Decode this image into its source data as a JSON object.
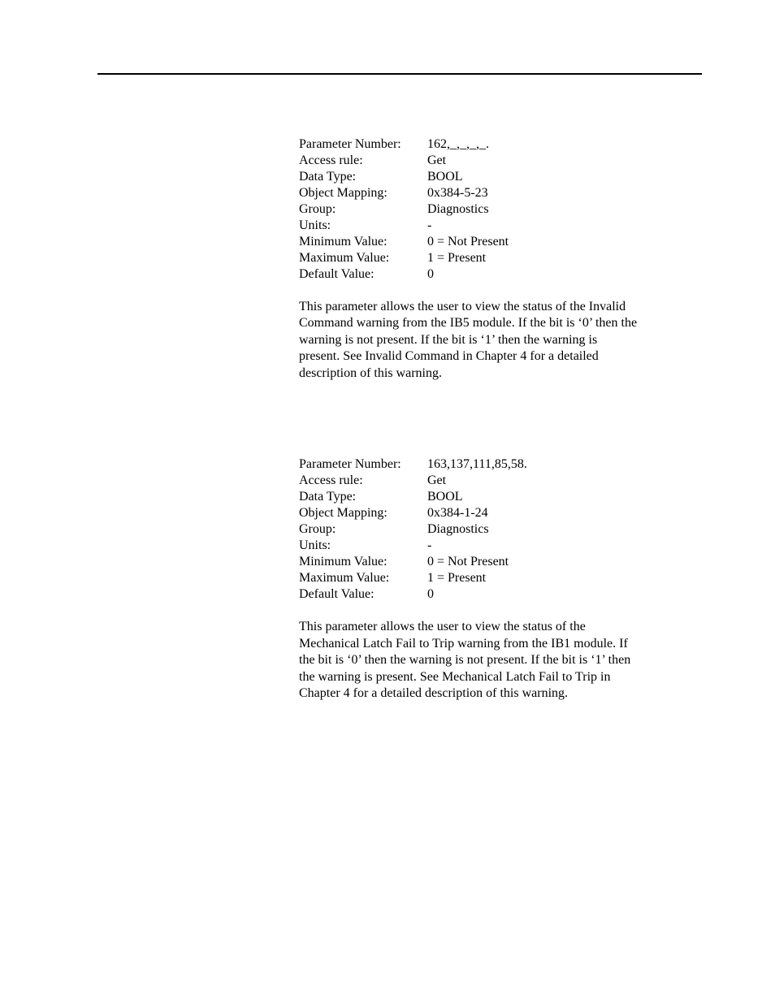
{
  "sections": [
    {
      "params": {
        "parameter_number_label": "Parameter Number:",
        "parameter_number_value": "162,_,_,_,_.",
        "access_rule_label": "Access rule:",
        "access_rule_value": "Get",
        "data_type_label": "Data Type:",
        "data_type_value": "BOOL",
        "object_mapping_label": "Object Mapping:",
        "object_mapping_value": "0x384-5-23",
        "group_label": "Group:",
        "group_value": "Diagnostics",
        "units_label": "Units:",
        "units_value": "-",
        "min_label": "Minimum Value:",
        "min_value": "0 = Not Present",
        "max_label": "Maximum Value:",
        "max_value": "1 = Present",
        "default_label": "Default Value:",
        "default_value": "0"
      },
      "description": "This parameter allows the user to view the status of the Invalid Command warning from the IB5 module.  If the bit is ‘0’ then the warning is not present.  If the bit is ‘1’ then the warning is present.  See Invalid Command in Chapter 4 for a detailed description of this warning."
    },
    {
      "params": {
        "parameter_number_label": "Parameter Number:",
        "parameter_number_value": "163,137,111,85,58.",
        "access_rule_label": "Access rule:",
        "access_rule_value": "Get",
        "data_type_label": "Data Type:",
        "data_type_value": "BOOL",
        "object_mapping_label": "Object Mapping:",
        "object_mapping_value": "0x384-1-24",
        "group_label": "Group:",
        "group_value": "Diagnostics",
        "units_label": "Units:",
        "units_value": "-",
        "min_label": "Minimum Value:",
        "min_value": "0 = Not Present",
        "max_label": "Maximum Value:",
        "max_value": "1 = Present",
        "default_label": "Default Value:",
        "default_value": "0"
      },
      "description": "This parameter allows the user to view the status of the Mechanical Latch Fail to Trip warning from the IB1 module.  If the bit is ‘0’ then the warning is not present.  If the bit is ‘1’ then the warning is present.  See Mechanical Latch Fail to Trip in Chapter 4 for a detailed description of this warning."
    }
  ]
}
